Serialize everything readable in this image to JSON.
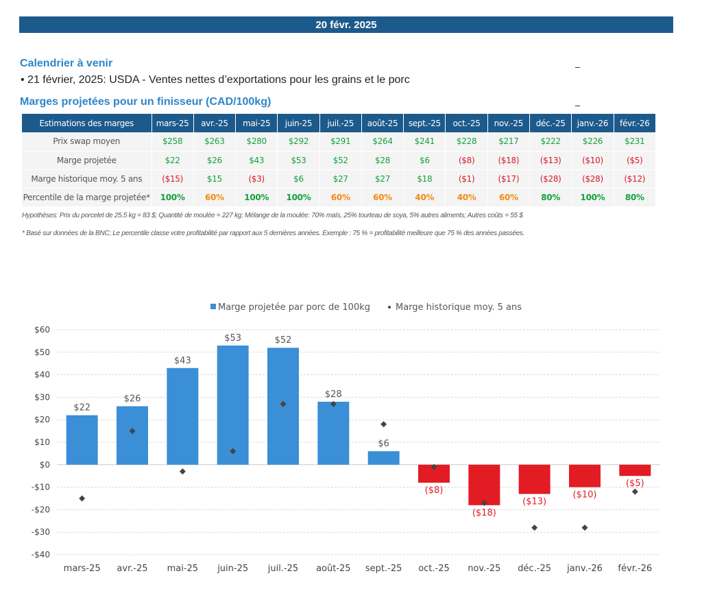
{
  "header": {
    "date": "20 févr. 2025"
  },
  "calendar": {
    "title": "Calendrier à venir",
    "items": [
      "• 21 février, 2025: USDA - Ventes nettes d’exportations pour les grains et le porc"
    ]
  },
  "margins_section": {
    "title": "Marges projetées pour un finisseur (CAD/100kg)"
  },
  "table": {
    "header_label": "Estimations des marges",
    "columns": [
      "mars-25",
      "avr.-25",
      "mai-25",
      "juin-25",
      "juil.-25",
      "août-25",
      "sept.-25",
      "oct.-25",
      "nov.-25",
      "déc.-25",
      "janv.-26",
      "févr.-26"
    ],
    "rows": [
      {
        "label": "Prix swap moyen",
        "values": [
          "$258",
          "$263",
          "$280",
          "$292",
          "$291",
          "$264",
          "$241",
          "$228",
          "$217",
          "$222",
          "$226",
          "$231"
        ],
        "colors": [
          "pos",
          "pos",
          "pos",
          "pos",
          "pos",
          "pos",
          "pos",
          "pos",
          "pos",
          "pos",
          "pos",
          "pos"
        ]
      },
      {
        "label": "Marge projetée",
        "values": [
          "$22",
          "$26",
          "$43",
          "$53",
          "$52",
          "$28",
          "$6",
          "($8)",
          "($18)",
          "($13)",
          "($10)",
          "($5)"
        ],
        "colors": [
          "pos",
          "pos",
          "pos",
          "pos",
          "pos",
          "pos",
          "pos",
          "neg",
          "neg",
          "neg",
          "neg",
          "neg"
        ]
      },
      {
        "label": "Marge historique moy. 5 ans",
        "values": [
          "($15)",
          "$15",
          "($3)",
          "$6",
          "$27",
          "$27",
          "$18",
          "($1)",
          "($17)",
          "($28)",
          "($28)",
          "($12)"
        ],
        "colors": [
          "neg",
          "pos",
          "neg",
          "pos",
          "pos",
          "pos",
          "pos",
          "neg",
          "neg",
          "neg",
          "neg",
          "neg"
        ]
      },
      {
        "label": "Percentile de la marge projetée*",
        "values": [
          "100%",
          "60%",
          "100%",
          "100%",
          "60%",
          "60%",
          "40%",
          "40%",
          "60%",
          "80%",
          "100%",
          "80%"
        ],
        "colors": [
          "pct-green",
          "pct-orange",
          "pct-green",
          "pct-green",
          "pct-orange",
          "pct-orange",
          "pct-orange",
          "pct-orange",
          "pct-orange",
          "pct-green",
          "pct-green",
          "pct-green"
        ]
      }
    ]
  },
  "notes": {
    "hypotheses": "Hypothèses: Prix du porcelet de 25.5 kg = 83 $; Quantité de moulée = 227 kg; Mélange de la moulée: 70% maïs, 25% tourteau de soya, 5% autres aliments; Autres coûts = 55 $",
    "footnote": "* Basé sur données de la BNC; Le percentile classe votre profitabilité par rapport aux 5 dernières années. Exemple : 75 % = profitabilité meilleure que 75 % des années passées."
  },
  "colors": {
    "header_blue": "#1d5a8c",
    "title_blue": "#2e86c8",
    "positive_green": "#15a13c",
    "negative_red": "#d9182b",
    "percentile_orange": "#f28c0f",
    "bar_positive": "#3a8fd6",
    "bar_negative": "#e31b23",
    "marker": "#444444"
  },
  "chart_data": {
    "type": "bar",
    "categories": [
      "mars-25",
      "avr.-25",
      "mai-25",
      "juin-25",
      "juil.-25",
      "août-25",
      "sept.-25",
      "oct.-25",
      "nov.-25",
      "déc.-25",
      "janv.-26",
      "févr.-26"
    ],
    "series": [
      {
        "name": "Marge projetée par porc de 100kg",
        "type": "bar",
        "values": [
          22,
          26,
          43,
          53,
          52,
          28,
          6,
          -8,
          -18,
          -13,
          -10,
          -5
        ],
        "labels": [
          "$22",
          "$26",
          "$43",
          "$53",
          "$52",
          "$28",
          "$6",
          "($8)",
          "($18)",
          "($13)",
          "($10)",
          "($5)"
        ]
      },
      {
        "name": "Marge historique moy. 5 ans",
        "type": "scatter",
        "values": [
          -15,
          15,
          -3,
          6,
          27,
          27,
          18,
          -1,
          -17,
          -28,
          -28,
          -12
        ]
      }
    ],
    "yticks": [
      60,
      50,
      40,
      30,
      20,
      10,
      0,
      -10,
      -20,
      -30,
      -40
    ],
    "ytick_labels": [
      "$60",
      "$50",
      "$40",
      "$30",
      "$20",
      "$10",
      "$0",
      "-$10",
      "-$20",
      "-$30",
      "-$40"
    ],
    "ylim": [
      -40,
      60
    ],
    "grid": "horizontal",
    "legend_position": "top-center"
  }
}
